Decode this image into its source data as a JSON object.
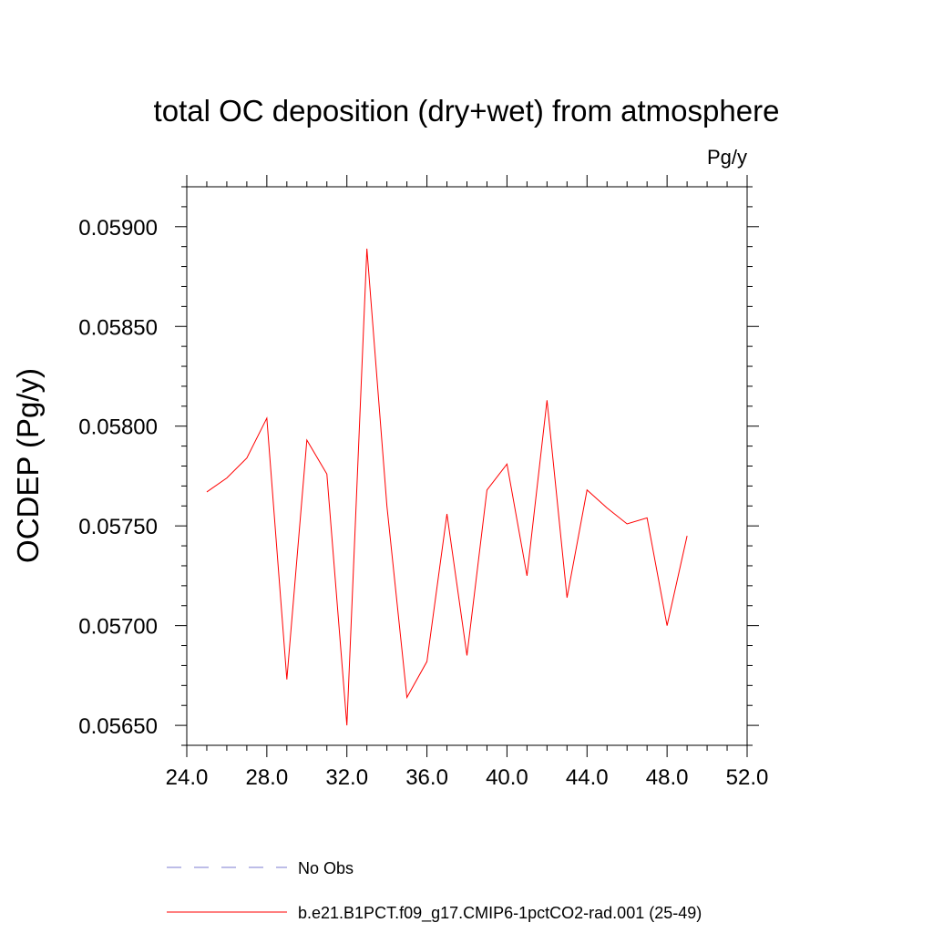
{
  "chart_data": {
    "type": "line",
    "title": "total OC deposition (dry+wet) from atmosphere",
    "units_label": "Pg/y",
    "xlabel": "",
    "ylabel": "OCDEP  (Pg/y)",
    "xlim": [
      24,
      52
    ],
    "ylim": [
      0.0564,
      0.0592
    ],
    "x_ticks": [
      "24.0",
      "28.0",
      "32.0",
      "36.0",
      "40.0",
      "44.0",
      "48.0",
      "52.0"
    ],
    "y_ticks": [
      "0.05650",
      "0.05700",
      "0.05750",
      "0.05800",
      "0.05850",
      "0.05900"
    ],
    "grid": false,
    "legend_position": "bottom",
    "x": [
      25,
      26,
      27,
      28,
      29,
      30,
      31,
      32,
      33,
      34,
      35,
      36,
      37,
      38,
      39,
      40,
      41,
      42,
      43,
      44,
      45,
      46,
      47,
      48,
      49
    ],
    "series": [
      {
        "name": "b.e21.B1PCT.f09_g17.CMIP6-1pctCO2-rad.001 (25-49)",
        "color": "#ff0000",
        "style": "solid",
        "values": [
          0.05767,
          0.05774,
          0.05784,
          0.05804,
          0.05673,
          0.05793,
          0.05776,
          0.0565,
          0.05889,
          0.0576,
          0.05664,
          0.05682,
          0.05756,
          0.05685,
          0.05768,
          0.05781,
          0.05725,
          0.05813,
          0.05714,
          0.05768,
          0.05759,
          0.05751,
          0.05754,
          0.057,
          0.05745
        ]
      }
    ],
    "legend": [
      {
        "label": "No Obs",
        "color": "#7b7bd0",
        "style": "dashed"
      },
      {
        "label": "b.e21.B1PCT.f09_g17.CMIP6-1pctCO2-rad.001 (25-49)",
        "color": "#ff0000",
        "style": "solid"
      }
    ]
  }
}
